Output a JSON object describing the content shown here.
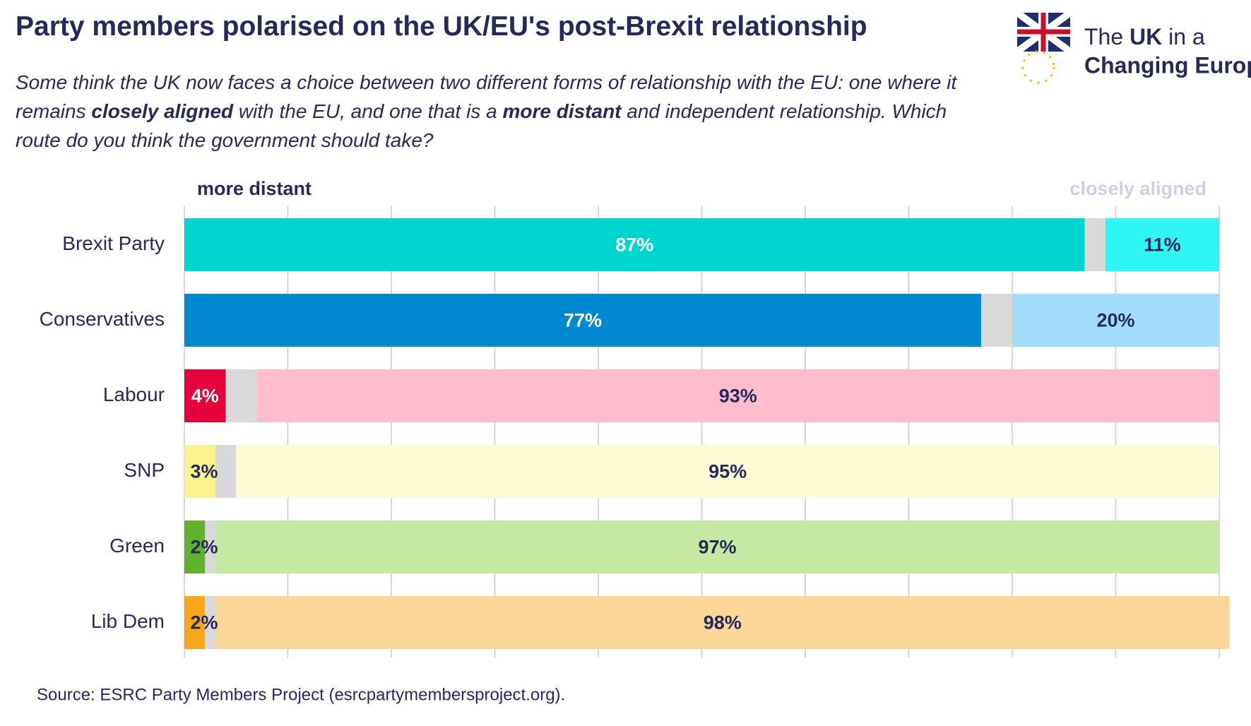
{
  "chart_data": {
    "type": "stacked-bar-horizontal",
    "title": "Party members polarised on the UK/EU's post-Brexit relationship",
    "subtitle": [
      {
        "text": "Some think the UK now faces a choice between two different forms of relationship with the EU: one where it remains ",
        "bold": false
      },
      {
        "text": "closely aligned",
        "bold": true
      },
      {
        "text": " with the EU, and one that is a ",
        "bold": false
      },
      {
        "text": "more distant",
        "bold": true
      },
      {
        "text": " and independent relationship. Which route do you think the government should take?",
        "bold": false
      }
    ],
    "logo": [
      "The",
      "UK",
      "in a",
      "Changing Europe"
    ],
    "source": "Source:  ESRC Party Members Project (esrcpartymembersproject.org).",
    "categories": [
      "Brexit Party",
      "Conservatives",
      "Labour",
      "SNP",
      "Green",
      "Lib Dem"
    ],
    "series": [
      {
        "name": "more distant",
        "color": "#262a5a",
        "colors": [
          "#00d5d0",
          "#0088d1",
          "#e4003b",
          "#fdf38e",
          "#61b22b",
          "#faa61a"
        ],
        "label_colors": [
          "#ffffff",
          "#ffffff",
          "#ffffff",
          "#262a5a",
          "#262a5a",
          "#262a5a"
        ],
        "values": [
          87,
          77,
          4,
          3,
          2,
          2
        ],
        "value_labels": [
          "87%",
          "77%",
          "4%",
          "3%",
          "2%",
          "2%"
        ]
      },
      {
        "color": "#d9d9d9",
        "values": [
          2,
          3,
          3,
          2,
          1,
          1
        ]
      },
      {
        "name": "closely aligned",
        "color": "#ccd0e6",
        "colors": [
          "#30f5f5",
          "#a2dcfb",
          "#ffbccc",
          "#fdfad6",
          "#c6e9a2",
          "#fad699"
        ],
        "label_colors": [
          "#262a5a",
          "#262a5a",
          "#262a5a",
          "#262a5a",
          "#262a5a",
          "#262a5a"
        ],
        "values": [
          11,
          20,
          93,
          95,
          97,
          98
        ],
        "value_labels": [
          "11%",
          "20%",
          "93%",
          "95%",
          "97%",
          "98%"
        ]
      }
    ],
    "xlim": [
      0,
      100
    ],
    "xticks": [
      0,
      10,
      20,
      30,
      40,
      50,
      60,
      70,
      80,
      90,
      100
    ],
    "grid": true
  }
}
